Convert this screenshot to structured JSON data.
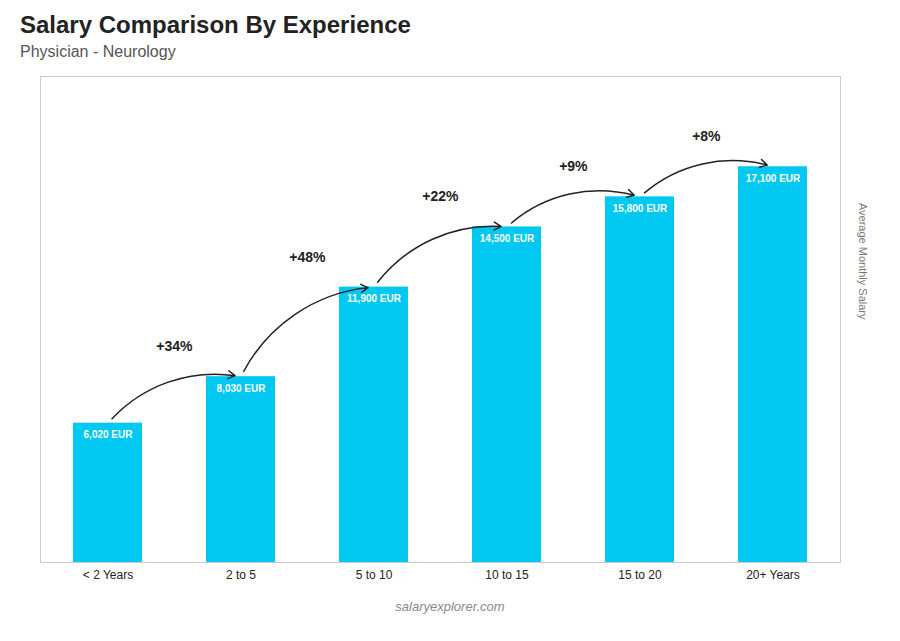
{
  "chart_data": {
    "type": "bar",
    "title": "Salary Comparison By Experience",
    "subtitle": "Physician - Neurology",
    "categories": [
      "< 2 Years",
      "2 to 5",
      "5 to 10",
      "10 to 15",
      "15 to 20",
      "20+ Years"
    ],
    "values": [
      6020,
      8030,
      11900,
      14500,
      15800,
      17100
    ],
    "value_labels": [
      "6,020 EUR",
      "8,030 EUR",
      "11,900 EUR",
      "14,500 EUR",
      "15,800 EUR",
      "17,100 EUR"
    ],
    "data_labels": true,
    "color": "#00c8f0",
    "ylabel": "Average Monthly Salary",
    "ylim": [
      0,
      21000
    ],
    "tick_labels": "x",
    "grid": false,
    "annotations": [
      {
        "from": "< 2 Years",
        "to": "2 to 5",
        "text": "+34%"
      },
      {
        "from": "2 to 5",
        "to": "5 to 10",
        "text": "+48%"
      },
      {
        "from": "5 to 10",
        "to": "10 to 15",
        "text": "+22%"
      },
      {
        "from": "10 to 15",
        "to": "15 to 20",
        "text": "+9%"
      },
      {
        "from": "15 to 20",
        "to": "20+ Years",
        "text": "+8%"
      }
    ],
    "watermark": "salaryexplorer.com"
  }
}
